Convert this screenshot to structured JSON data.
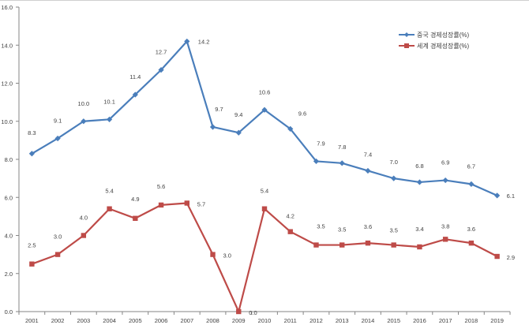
{
  "chart_data": {
    "type": "line",
    "title": "",
    "xlabel": "",
    "ylabel": "",
    "ylim": [
      0,
      16
    ],
    "yticks": [
      "0.0",
      "2.0",
      "4.0",
      "6.0",
      "8.0",
      "10.0",
      "12.0",
      "14.0",
      "16.0"
    ],
    "grid": false,
    "legend_position": "top-right",
    "categories": [
      "2001",
      "2002",
      "2003",
      "2004",
      "2005",
      "2006",
      "2007",
      "2008",
      "2009",
      "2010",
      "2011",
      "2012",
      "2013",
      "2014",
      "2015",
      "2016",
      "2017",
      "2018",
      "2019"
    ],
    "series": [
      {
        "name": "중국 경제성장률(%)",
        "color": "#4a7ebb",
        "marker": "diamond",
        "values": [
          8.3,
          9.1,
          10.0,
          10.1,
          11.4,
          12.7,
          14.2,
          9.7,
          9.4,
          10.6,
          9.6,
          7.9,
          7.8,
          7.4,
          7.0,
          6.8,
          6.9,
          6.7,
          6.1
        ],
        "labels": [
          "8.3",
          "9.1",
          "10.0",
          "10.1",
          "11.4",
          "12.7",
          "14.2",
          "9.7",
          "9.4",
          "10.6",
          "9.6",
          "7.9",
          "7.8",
          "7.4",
          "7.0",
          "6.8",
          "6.9",
          "6.7",
          "6.1"
        ]
      },
      {
        "name": "세계 경제성장률(%)",
        "color": "#be4b48",
        "marker": "square",
        "values": [
          2.5,
          3.0,
          4.0,
          5.4,
          4.9,
          5.6,
          5.7,
          3.0,
          0.0,
          5.4,
          4.2,
          3.5,
          3.5,
          3.6,
          3.5,
          3.4,
          3.8,
          3.6,
          2.9
        ],
        "labels": [
          "2.5",
          "3.0",
          "4.0",
          "5.4",
          "4.9",
          "5.6",
          "5.7",
          "3.0",
          "0.0",
          "5.4",
          "4.2",
          "3.5",
          "3.5",
          "3.6",
          "3.5",
          "3.4",
          "3.8",
          "3.6",
          "2.9"
        ]
      }
    ]
  }
}
